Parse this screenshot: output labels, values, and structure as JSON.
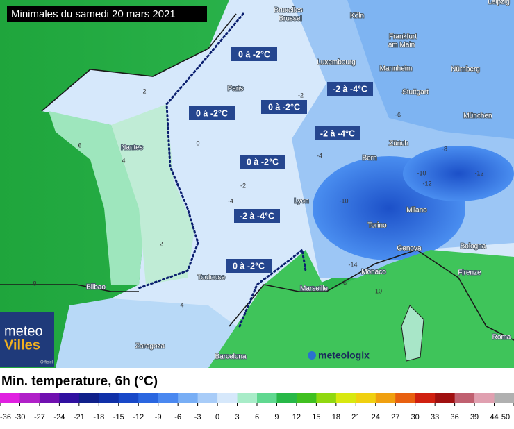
{
  "title": "Minimales du samedi 20 mars 2021",
  "region_labels": [
    "0 à -2°C",
    "0 à -2°C",
    "0 à -2°C",
    "-2 à -4°C",
    "-2 à -4°C",
    "0 à -2°C",
    "-2 à -4°C",
    "0 à -2°C"
  ],
  "cities": [
    "Bruxelles",
    "Brussel",
    "Köln",
    "Leipzig",
    "Frankfurt",
    "am Main",
    "Luxembourg",
    "Mannheim",
    "Nürnberg",
    "Paris",
    "Stuttgart",
    "München",
    "Nantes",
    "Zürich",
    "Bern",
    "Lyon",
    "Milano",
    "Torino",
    "Genova",
    "Bologna",
    "Monaco",
    "Marseille",
    "Firenze",
    "Toulouse",
    "Bilbao",
    "Zaragoza",
    "Barcelona",
    "Roma"
  ],
  "contour_labels": [
    -2,
    -4,
    -6,
    -8,
    -10,
    -12,
    -14,
    2,
    4,
    6,
    8,
    10,
    0,
    -2,
    -4,
    -6,
    2,
    4,
    -10,
    -12
  ],
  "legend": {
    "title": "Min. temperature, 6h (°C)",
    "ticks": [
      -36,
      -30,
      -27,
      -24,
      -21,
      -18,
      -15,
      -12,
      -9,
      -6,
      -3,
      0,
      3,
      6,
      9,
      12,
      15,
      18,
      21,
      24,
      27,
      30,
      33,
      36,
      39,
      44,
      50
    ]
  },
  "logos": {
    "meteo": "meteo",
    "villes": "Villes",
    "officiel": "Officiel",
    "meteologix": "meteologix"
  }
}
